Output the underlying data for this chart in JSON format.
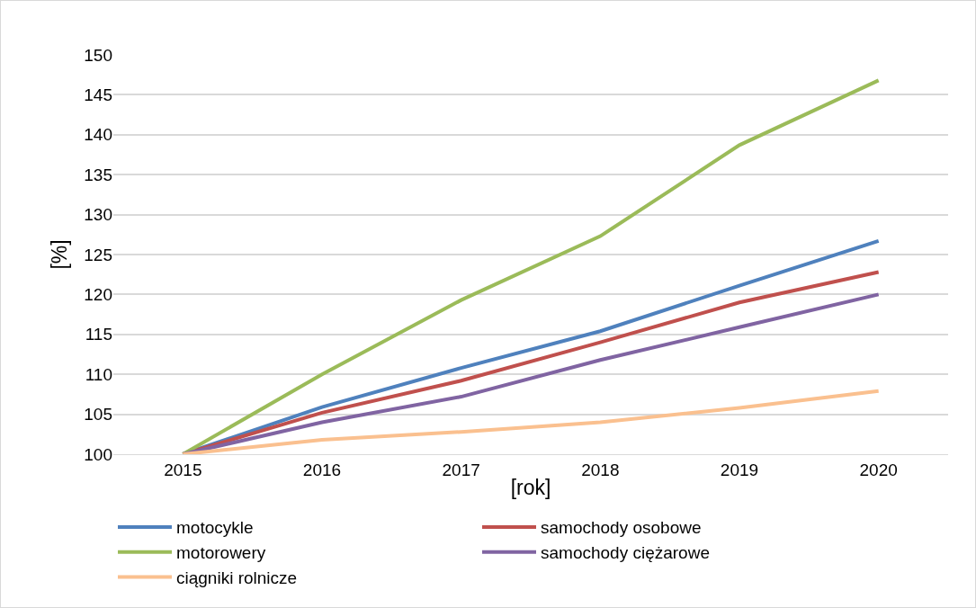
{
  "chart_data": {
    "type": "line",
    "xlabel": "[rok]",
    "ylabel": "[%]",
    "categories": [
      "2015",
      "2016",
      "2017",
      "2018",
      "2019",
      "2020"
    ],
    "series": [
      {
        "name": "motocykle",
        "color": "#4f81bd",
        "values": [
          100,
          105.9,
          110.8,
          115.4,
          121.1,
          126.7
        ]
      },
      {
        "name": "samochody osobowe",
        "color": "#c0504d",
        "values": [
          100,
          105.2,
          109.2,
          114,
          119,
          122.8
        ]
      },
      {
        "name": "motorowery",
        "color": "#9bbb59",
        "values": [
          100,
          110,
          119.3,
          127.3,
          138.7,
          146.8
        ]
      },
      {
        "name": "samochody ciężarowe",
        "color": "#8064a2",
        "values": [
          100,
          104,
          107.2,
          111.8,
          115.9,
          120
        ]
      },
      {
        "name": "ciągniki rolnicze",
        "color": "#fac08f",
        "values": [
          100,
          101.8,
          102.8,
          104,
          105.8,
          107.9
        ]
      }
    ],
    "ylim": [
      100,
      150
    ],
    "yticks": [
      100,
      105,
      110,
      115,
      120,
      125,
      130,
      135,
      140,
      145,
      150
    ],
    "grid": "y",
    "legend": "bottom",
    "marker": "none",
    "line_style": "solid"
  }
}
